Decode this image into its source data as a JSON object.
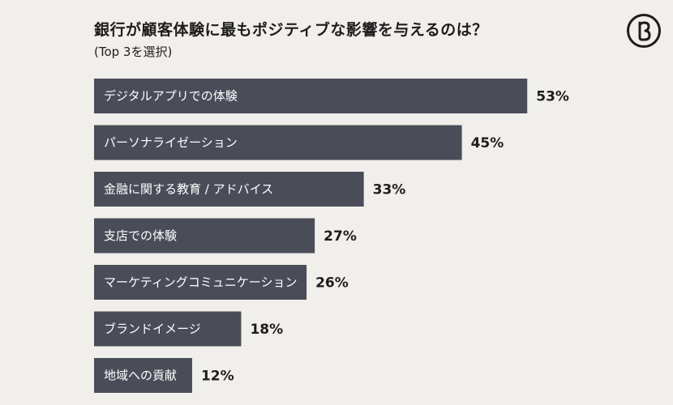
{
  "chart_data": {
    "type": "bar",
    "orientation": "horizontal",
    "title": "銀行が顧客体験に最もポジティブな影響を与えるのは？",
    "subtitle": "(Top 3を選択)",
    "categories": [
      "デジタルアプリでの体験",
      "パーソナライゼーション",
      "金融に関する教育 / アドバイス",
      "支店での体験",
      "マーケティングコミュニケーション",
      "ブランドイメージ",
      "地域への貢献"
    ],
    "values": [
      53,
      45,
      33,
      27,
      26,
      18,
      12
    ],
    "value_labels": [
      "53%",
      "45%",
      "33%",
      "27%",
      "26%",
      "18%",
      "12%"
    ],
    "unit": "%",
    "xlim": [
      0,
      100
    ],
    "xlabel": "",
    "ylabel": "",
    "grid": false,
    "legend": "none"
  },
  "colors": {
    "background": "#f1efeb",
    "bar": "#4a4d58",
    "bar_text": "#ffffff",
    "text": "#1d1d1d"
  },
  "logo": {
    "icon": "b-circle-logo-icon"
  }
}
